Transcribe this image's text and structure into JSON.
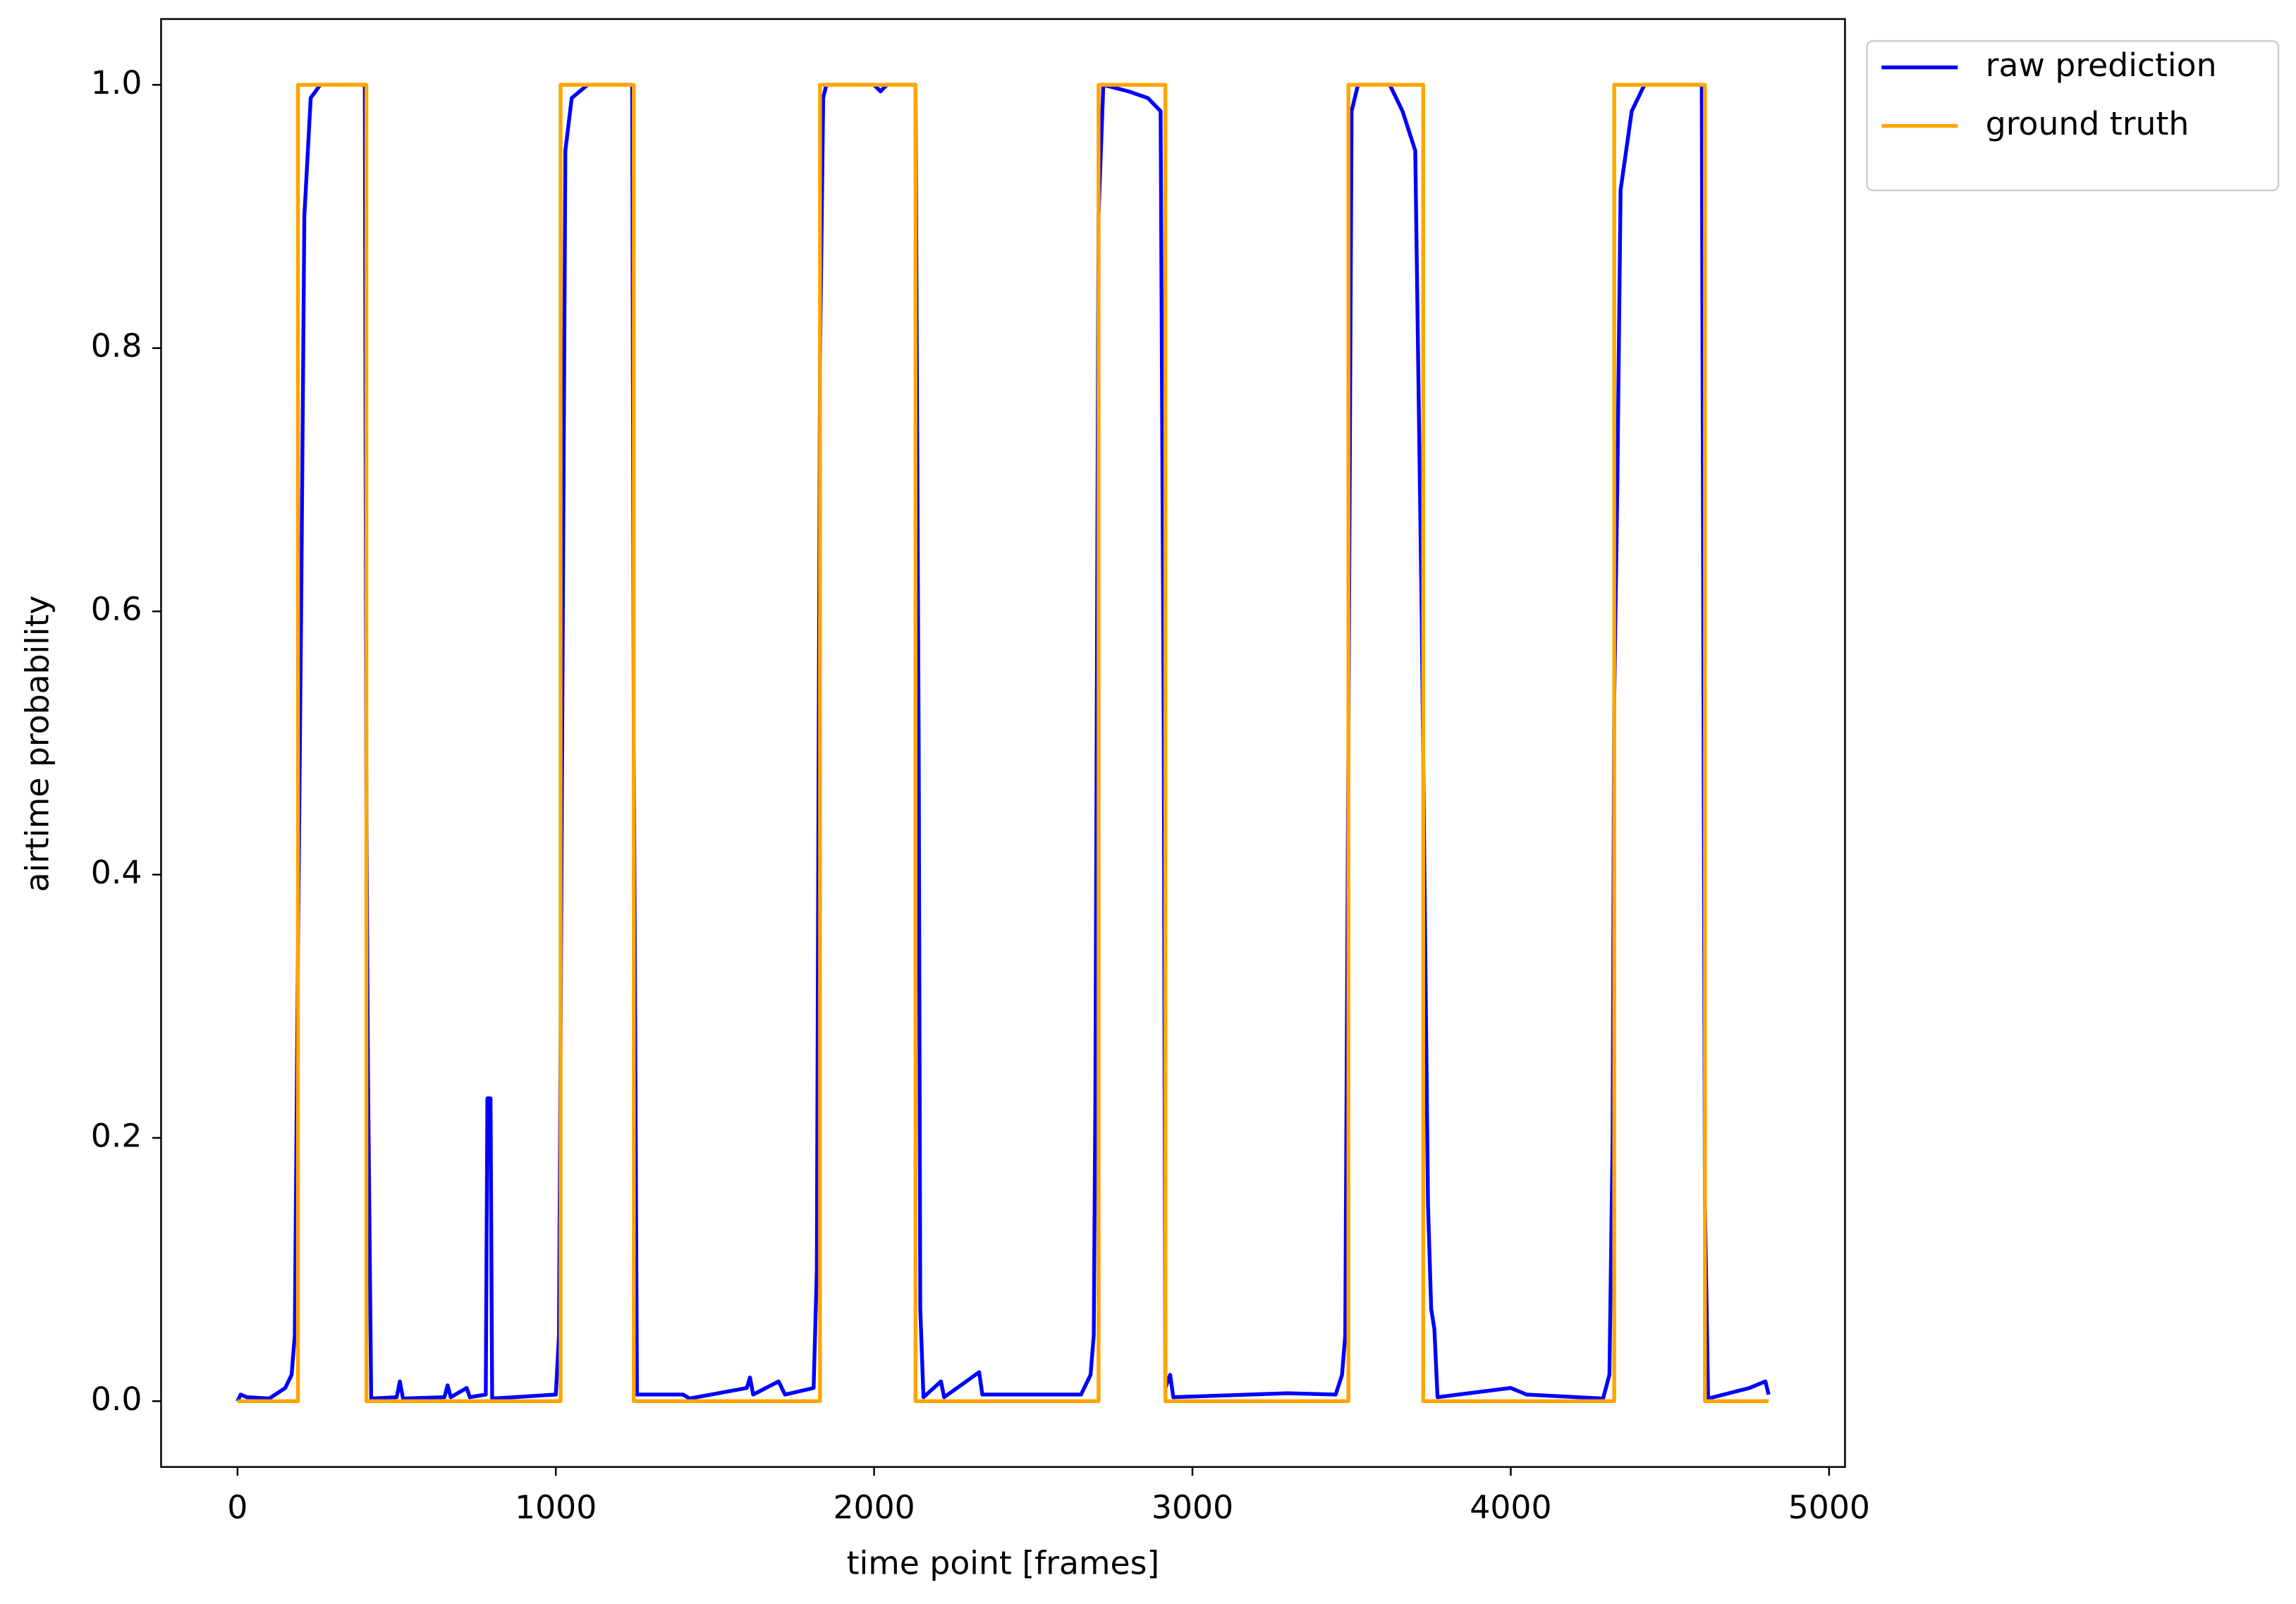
{
  "chart_data": {
    "type": "line",
    "xlabel": "time point [frames]",
    "ylabel": "airtime probability",
    "xlim": [
      -240,
      5050
    ],
    "ylim": [
      -0.05,
      1.05
    ],
    "xticks": [
      0,
      1000,
      2000,
      3000,
      4000,
      5000
    ],
    "yticks": [
      {
        "value": 0,
        "label": "0.0"
      },
      {
        "value": 0.2,
        "label": "0.2"
      },
      {
        "value": 0.4,
        "label": "0.4"
      },
      {
        "value": 0.6,
        "label": "0.6"
      },
      {
        "value": 0.8,
        "label": "0.8"
      },
      {
        "value": 1,
        "label": "1.0"
      }
    ],
    "grid": false,
    "legend": "outside-upper-right",
    "series": [
      {
        "name": "raw prediction",
        "color": "#0000ff",
        "x": [
          0,
          10,
          30,
          100,
          150,
          170,
          180,
          190,
          200,
          210,
          230,
          260,
          400,
          405,
          410,
          420,
          500,
          510,
          520,
          650,
          660,
          670,
          720,
          730,
          780,
          785,
          795,
          800,
          1000,
          1010,
          1020,
          1030,
          1050,
          1100,
          1240,
          1245,
          1255,
          1400,
          1420,
          1600,
          1610,
          1620,
          1700,
          1720,
          1810,
          1820,
          1830,
          1840,
          1850,
          2000,
          2020,
          2040,
          2130,
          2140,
          2145,
          2155,
          2210,
          2220,
          2330,
          2340,
          2500,
          2650,
          2680,
          2690,
          2695,
          2705,
          2720,
          2800,
          2860,
          2900,
          2910,
          2915,
          2930,
          2940,
          3300,
          3450,
          3470,
          3480,
          3490,
          3500,
          3520,
          3620,
          3660,
          3700,
          3720,
          3740,
          3750,
          3760,
          3770,
          4000,
          4050,
          4290,
          4310,
          4320,
          4325,
          4335,
          4345,
          4380,
          4420,
          4560,
          4600,
          4610,
          4620,
          4750,
          4800,
          4810
        ],
        "values": [
          0,
          0.005,
          0.003,
          0.002,
          0.01,
          0.02,
          0.05,
          0.34,
          0.6,
          0.9,
          0.99,
          1,
          1,
          0.45,
          0.25,
          0.002,
          0.003,
          0.015,
          0.002,
          0.003,
          0.012,
          0.003,
          0.01,
          0.003,
          0.005,
          0.23,
          0.23,
          0.002,
          0.005,
          0.05,
          0.5,
          0.95,
          0.99,
          1,
          1,
          0.5,
          0.005,
          0.005,
          0.002,
          0.01,
          0.018,
          0.005,
          0.015,
          0.005,
          0.01,
          0.1,
          0.79,
          0.99,
          1,
          1,
          0.995,
          1,
          1,
          0.5,
          0.07,
          0.003,
          0.015,
          0.003,
          0.022,
          0.005,
          0.005,
          0.005,
          0.02,
          0.05,
          0.23,
          0.9,
          1,
          0.995,
          0.99,
          0.98,
          0.5,
          0.01,
          0.02,
          0.003,
          0.006,
          0.005,
          0.02,
          0.05,
          0.5,
          0.98,
          1,
          1,
          0.98,
          0.95,
          0.6,
          0.15,
          0.07,
          0.055,
          0.003,
          0.01,
          0.005,
          0.002,
          0.02,
          0.2,
          0.53,
          0.7,
          0.92,
          0.98,
          1,
          1,
          1,
          0.15,
          0.002,
          0.01,
          0.015,
          0.005
        ]
      },
      {
        "name": "ground truth",
        "color": "#ffa500",
        "x": [
          0,
          190,
          190,
          405,
          405,
          1015,
          1015,
          1245,
          1245,
          1830,
          1830,
          2130,
          2130,
          2705,
          2705,
          2915,
          2915,
          3490,
          3490,
          3725,
          3725,
          4325,
          4325,
          4610,
          4610,
          4810
        ],
        "values": [
          0,
          0,
          1,
          1,
          0,
          0,
          1,
          1,
          0,
          0,
          1,
          1,
          0,
          0,
          1,
          1,
          0,
          0,
          1,
          1,
          0,
          0,
          1,
          1,
          0,
          0
        ]
      }
    ]
  }
}
